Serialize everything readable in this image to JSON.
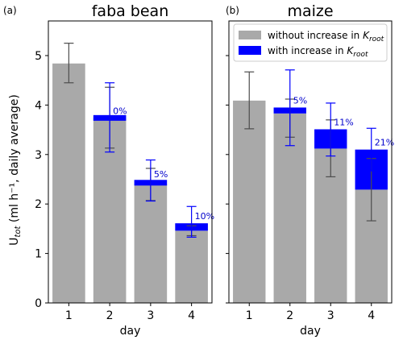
{
  "chart_data": [
    {
      "type": "bar",
      "panel_label": "(a)",
      "title": "faba bean",
      "xlabel": "day",
      "ylabel_main": "U",
      "ylabel_sub": "tot",
      "ylabel_rest": " (ml h⁻¹, daily average)",
      "categories": [
        "1",
        "2",
        "3",
        "4"
      ],
      "ylim": [
        0,
        5.7
      ],
      "yticks": [
        0,
        1,
        2,
        3,
        4,
        5
      ],
      "series": [
        {
          "name": "without increase in K_root",
          "values": [
            4.84,
            3.74,
            2.4,
            1.46
          ],
          "err_low": [
            4.45,
            3.13,
            2.07,
            1.36
          ],
          "err_high": [
            5.25,
            4.36,
            2.72,
            1.56
          ]
        },
        {
          "name": "with increase in K_root",
          "values": [
            null,
            3.74,
            2.46,
            1.61
          ],
          "err_low": [
            null,
            3.05,
            2.06,
            1.33
          ],
          "err_high": [
            null,
            4.45,
            2.89,
            1.95
          ]
        }
      ],
      "increase_labels": [
        "",
        "0%",
        "5%",
        "10%"
      ]
    },
    {
      "type": "bar",
      "panel_label": "(b)",
      "title": "maize",
      "xlabel": "day",
      "categories": [
        "1",
        "2",
        "3",
        "4"
      ],
      "ylim": [
        0,
        5.7
      ],
      "legend": {
        "placement": "top",
        "entries": [
          {
            "prefix": "without increase in ",
            "main": "K",
            "sub": "root"
          },
          {
            "prefix": "with increase in ",
            "main": "K",
            "sub": "root"
          }
        ]
      },
      "series": [
        {
          "name": "without increase in K_root",
          "values": [
            4.09,
            3.83,
            3.12,
            2.29
          ],
          "err_low": [
            3.52,
            3.35,
            2.55,
            1.66
          ],
          "err_high": [
            4.67,
            4.12,
            3.7,
            2.92
          ]
        },
        {
          "name": "with increase in K_root",
          "values": [
            null,
            3.95,
            3.51,
            3.1
          ],
          "err_low": [
            null,
            3.18,
            2.97,
            2.67
          ],
          "err_high": [
            null,
            4.71,
            4.04,
            3.53
          ]
        }
      ],
      "increase_labels": [
        "",
        "5%",
        "11%",
        "21%"
      ]
    }
  ],
  "colors": {
    "without": "#a9a9a9",
    "with": "#0000ff",
    "err_without": "#4d4d4d",
    "err_with": "#0000ff",
    "label": "#0000cc",
    "axis": "#000000"
  }
}
